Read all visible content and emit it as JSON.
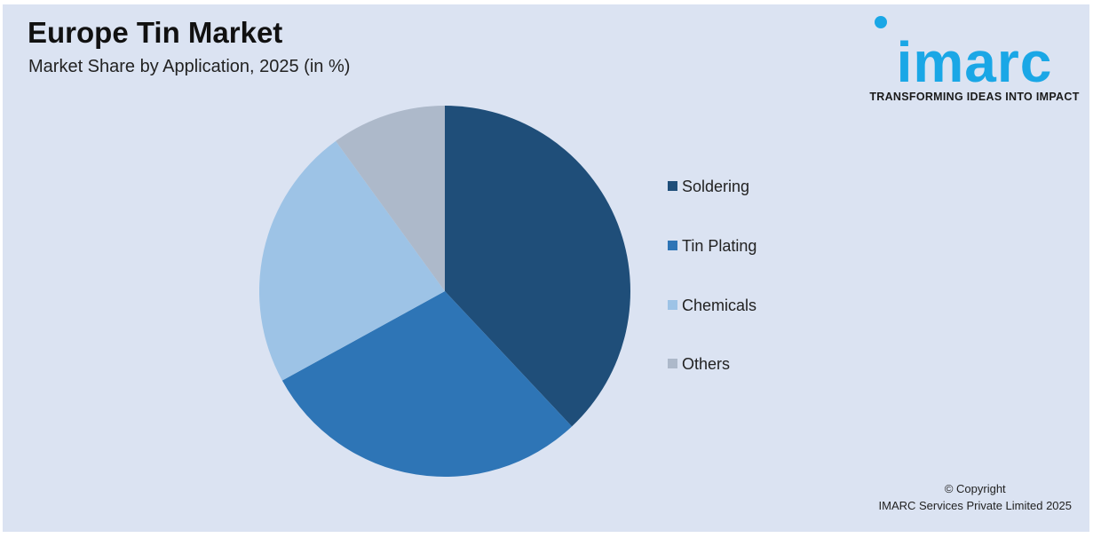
{
  "title": "Europe Tin Market",
  "subtitle": "Market Share by Application, 2025 (in %)",
  "logo": {
    "word": "imarc",
    "tagline": "TRANSFORMING IDEAS INTO IMPACT",
    "color": "#1aa7e6"
  },
  "copyright": {
    "line1": "© Copyright",
    "line2": "IMARC Services Private Limited 2025"
  },
  "chart_data": {
    "type": "pie",
    "title": "Europe Tin Market",
    "subtitle": "Market Share by Application, 2025 (in %)",
    "legend_position": "right",
    "start_angle": "12 o'clock, clockwise",
    "slices": [
      {
        "label": "Soldering",
        "value": 38,
        "color": "#1f4e79"
      },
      {
        "label": "Tin Plating",
        "value": 29,
        "color": "#2e75b6"
      },
      {
        "label": "Chemicals",
        "value": 23,
        "color": "#9dc3e6"
      },
      {
        "label": "Others",
        "value": 10,
        "color": "#adb9ca"
      }
    ]
  }
}
